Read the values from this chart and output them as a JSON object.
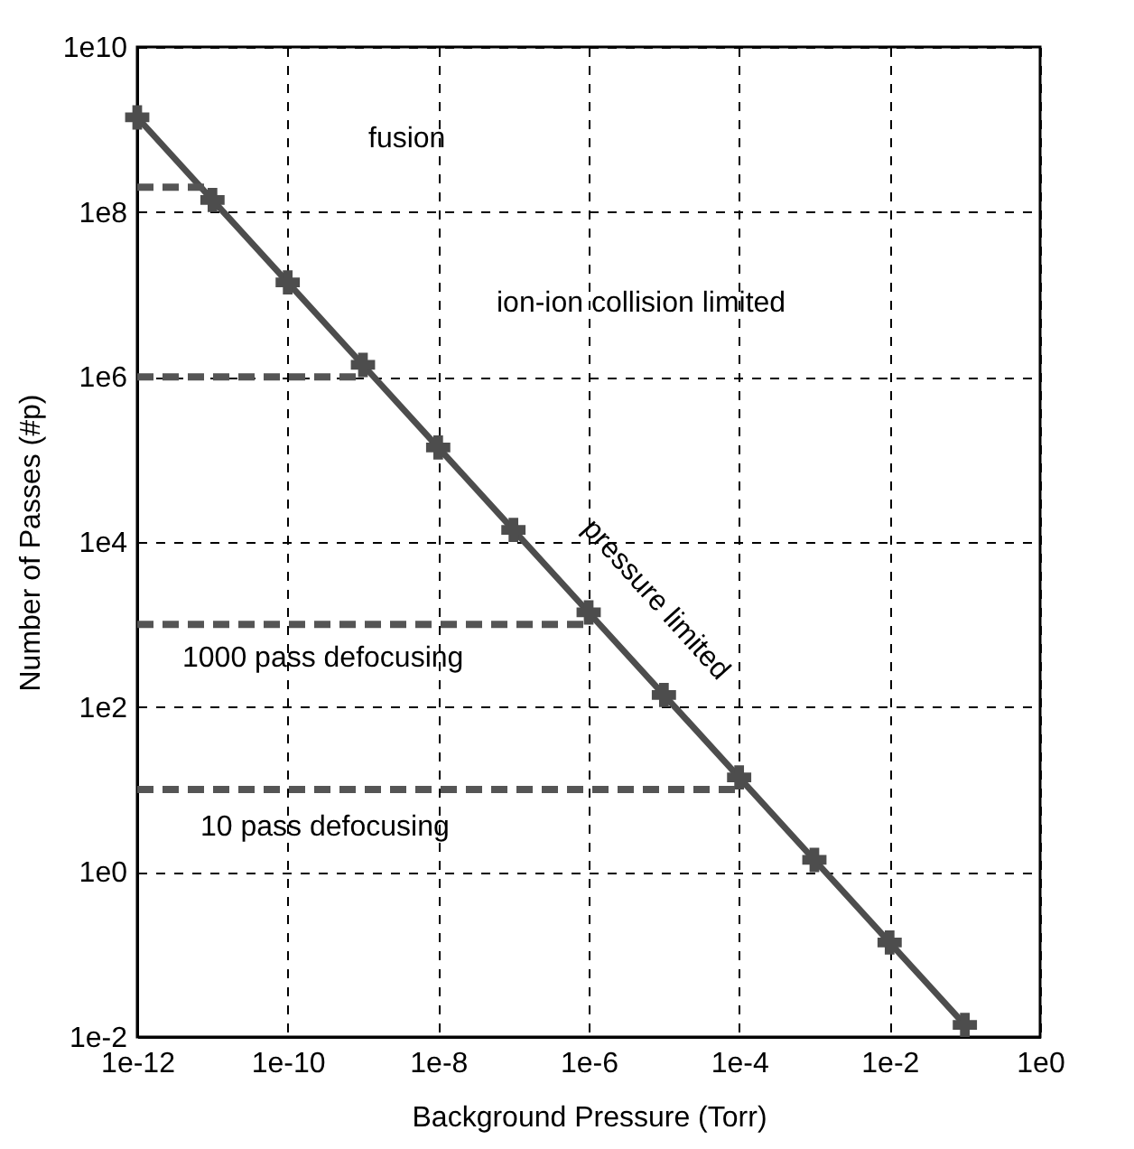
{
  "chart_data": {
    "type": "line",
    "xlabel": "Background Pressure (Torr)",
    "ylabel": "Number of Passes (#p)",
    "log": "xy",
    "grid": true,
    "xlim": [
      1e-12,
      1
    ],
    "ylim": [
      0.01,
      10000000000.0
    ],
    "xticks": [
      {
        "value": 1e-12,
        "label": "1e-12"
      },
      {
        "value": 1e-10,
        "label": "1e-10"
      },
      {
        "value": 1e-08,
        "label": "1e-8"
      },
      {
        "value": 1e-06,
        "label": "1e-6"
      },
      {
        "value": 0.0001,
        "label": "1e-4"
      },
      {
        "value": 0.01,
        "label": "1e-2"
      },
      {
        "value": 1,
        "label": "1e0"
      }
    ],
    "yticks": [
      {
        "value": 0.01,
        "label": "1e-2"
      },
      {
        "value": 1,
        "label": "1e0"
      },
      {
        "value": 100,
        "label": "1e2"
      },
      {
        "value": 10000,
        "label": "1e4"
      },
      {
        "value": 1000000,
        "label": "1e6"
      },
      {
        "value": 100000000,
        "label": "1e8"
      },
      {
        "value": 10000000000,
        "label": "1e10"
      }
    ],
    "series": [
      {
        "color": "#4d4d4d",
        "marker": "cross",
        "line_style": "solid",
        "x": [
          1e-12,
          1e-11,
          1e-10,
          1e-09,
          1e-08,
          1e-07,
          1e-06,
          1e-05,
          0.0001,
          0.001,
          0.01,
          0.1
        ],
        "values": [
          1400000000.0,
          140000000.0,
          14000000.0,
          1400000.0,
          140000.0,
          14000.0,
          1400.0,
          140,
          14,
          1.4,
          0.14,
          0.014
        ]
      },
      {
        "color": "#555555",
        "marker": "none",
        "line_style": "dashed",
        "x": [
          1e-12,
          1e-11
        ],
        "values": [
          200000000.0,
          200000000.0
        ]
      },
      {
        "color": "#555555",
        "marker": "none",
        "line_style": "dashed",
        "x": [
          1e-12,
          1e-09
        ],
        "values": [
          1000000.0,
          1000000.0
        ]
      },
      {
        "color": "#555555",
        "marker": "none",
        "line_style": "dashed",
        "x": [
          1e-12,
          1e-06
        ],
        "values": [
          1000,
          1000
        ]
      },
      {
        "color": "#555555",
        "marker": "none",
        "line_style": "dashed",
        "x": [
          1e-12,
          0.0001
        ],
        "values": [
          10,
          10
        ]
      }
    ],
    "annotations": [
      "fusion",
      "ion-ion collision limited",
      "1000 pass defocusing",
      "10 pass defocusing",
      "pressure limited"
    ]
  }
}
